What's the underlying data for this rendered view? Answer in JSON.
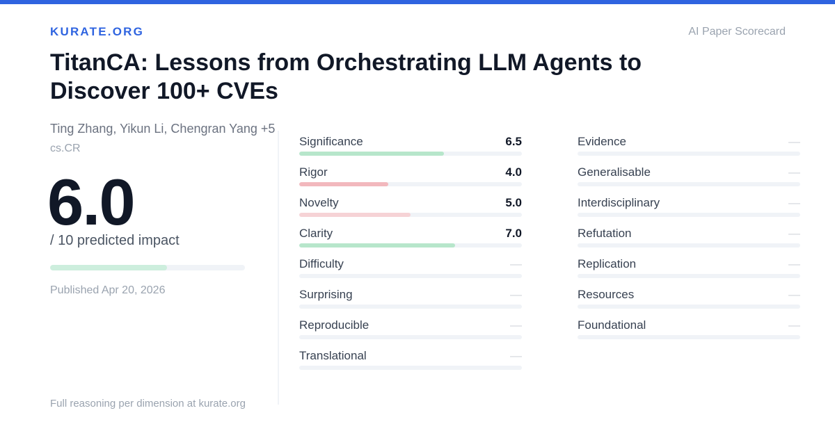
{
  "brand": "KURATE.ORG",
  "tagline": "AI Paper Scorecard",
  "paper": {
    "title": "TitanCA: Lessons from Orchestrating LLM Agents to Discover 100+ CVEs",
    "authors": "Ting Zhang, Yikun Li, Chengran Yang +5",
    "category": "cs.CR",
    "published": "Published Apr 20, 2026"
  },
  "impact": {
    "score": "6.0",
    "subtitle": "/ 10 predicted impact",
    "fraction": 0.6,
    "bar_color": "#cdeedd"
  },
  "colors": {
    "accent": "#2f64e0",
    "high": "#b7e6cb",
    "low": "#f2b8bd",
    "mid": "#f6d3d6"
  },
  "dimensions_col1": [
    {
      "label": "Significance",
      "value": "6.5",
      "fraction": 0.65,
      "color": "#b7e6cb"
    },
    {
      "label": "Rigor",
      "value": "4.0",
      "fraction": 0.4,
      "color": "#f2b8bd"
    },
    {
      "label": "Novelty",
      "value": "5.0",
      "fraction": 0.5,
      "color": "#f6d3d6"
    },
    {
      "label": "Clarity",
      "value": "7.0",
      "fraction": 0.7,
      "color": "#b7e6cb"
    },
    {
      "label": "Difficulty",
      "value": "—"
    },
    {
      "label": "Surprising",
      "value": "—"
    },
    {
      "label": "Reproducible",
      "value": "—"
    },
    {
      "label": "Translational",
      "value": "—"
    }
  ],
  "dimensions_col2": [
    {
      "label": "Evidence",
      "value": "—"
    },
    {
      "label": "Generalisable",
      "value": "—"
    },
    {
      "label": "Interdisciplinary",
      "value": "—"
    },
    {
      "label": "Refutation",
      "value": "—"
    },
    {
      "label": "Replication",
      "value": "—"
    },
    {
      "label": "Resources",
      "value": "—"
    },
    {
      "label": "Foundational",
      "value": "—"
    }
  ],
  "footer": "Full reasoning per dimension at kurate.org"
}
